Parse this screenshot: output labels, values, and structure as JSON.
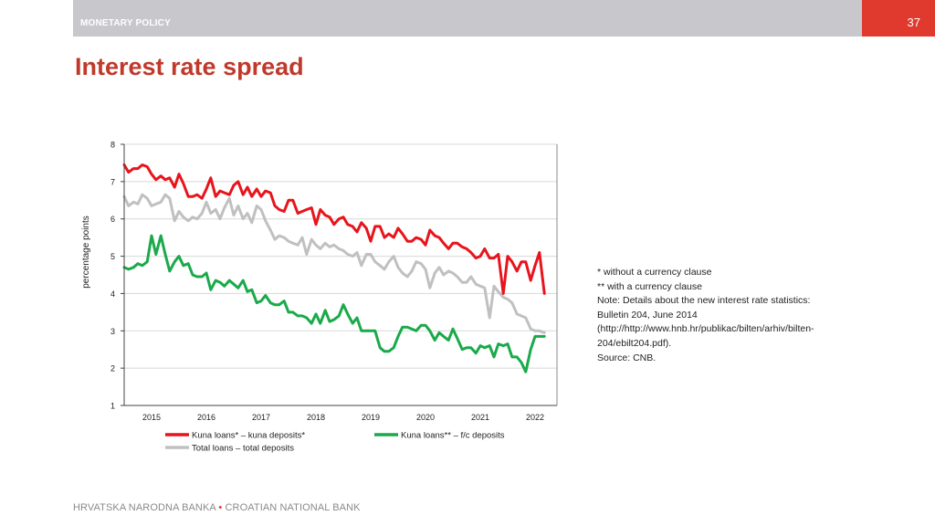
{
  "header": {
    "section_label": "MONETARY POLICY",
    "page_number": "37"
  },
  "slide": {
    "title": "Interest rate spread"
  },
  "notes": [
    "* without a currency clause",
    "** with a currency clause",
    "Note: Details about the new interest rate statistics:",
    "Bulletin 204, June 2014",
    "(http://http://www.hnb.hr/publikac/bilten/arhiv/bilten-",
    "204/ebilt204.pdf).",
    "Source: CNB."
  ],
  "footer": {
    "left": "HRVATSKA NARODNA BANKA",
    "separator": "•",
    "right": "CROATIAN NATIONAL BANK"
  },
  "chart_data": {
    "type": "line",
    "title": "",
    "xlabel": "",
    "ylabel": "percentage points",
    "xlim": [
      2014.5,
      2022.4
    ],
    "ylim": [
      1,
      8
    ],
    "y_ticks": [
      "1",
      "2",
      "3",
      "4",
      "5",
      "6",
      "7",
      "8"
    ],
    "x_ticks": [
      "2015",
      "2016",
      "2017",
      "2018",
      "2019",
      "2020",
      "2021",
      "2022"
    ],
    "grid": "horizontal",
    "legend_position": "bottom",
    "series": [
      {
        "name": "Kuna loans* – kuna deposits*",
        "color": "#e8141c",
        "x": [
          2014.5,
          2014.58,
          2014.67,
          2014.75,
          2014.83,
          2014.92,
          2015.0,
          2015.08,
          2015.17,
          2015.25,
          2015.33,
          2015.42,
          2015.5,
          2015.58,
          2015.67,
          2015.75,
          2015.83,
          2015.92,
          2016.0,
          2016.08,
          2016.17,
          2016.25,
          2016.33,
          2016.42,
          2016.5,
          2016.58,
          2016.67,
          2016.75,
          2016.83,
          2016.92,
          2017.0,
          2017.08,
          2017.17,
          2017.25,
          2017.33,
          2017.42,
          2017.5,
          2017.58,
          2017.67,
          2017.75,
          2017.83,
          2017.92,
          2018.0,
          2018.08,
          2018.17,
          2018.25,
          2018.33,
          2018.42,
          2018.5,
          2018.58,
          2018.67,
          2018.75,
          2018.83,
          2018.92,
          2019.0,
          2019.08,
          2019.17,
          2019.25,
          2019.33,
          2019.42,
          2019.5,
          2019.58,
          2019.67,
          2019.75,
          2019.83,
          2019.92,
          2020.0,
          2020.08,
          2020.17,
          2020.25,
          2020.33,
          2020.42,
          2020.5,
          2020.58,
          2020.67,
          2020.75,
          2020.83,
          2020.92,
          2021.0,
          2021.08,
          2021.17,
          2021.25,
          2021.33,
          2021.42,
          2021.5,
          2021.58,
          2021.67,
          2021.75,
          2021.83,
          2021.92,
          2022.0,
          2022.08,
          2022.17
        ],
        "values": [
          7.45,
          7.25,
          7.35,
          7.35,
          7.45,
          7.4,
          7.2,
          7.05,
          7.15,
          7.05,
          7.1,
          6.85,
          7.2,
          6.95,
          6.6,
          6.6,
          6.65,
          6.55,
          6.8,
          7.1,
          6.6,
          6.75,
          6.7,
          6.65,
          6.9,
          7.0,
          6.65,
          6.85,
          6.6,
          6.8,
          6.6,
          6.75,
          6.7,
          6.35,
          6.25,
          6.2,
          6.5,
          6.5,
          6.15,
          6.2,
          6.25,
          6.3,
          5.85,
          6.25,
          6.1,
          6.05,
          5.85,
          6.0,
          6.05,
          5.85,
          5.8,
          5.65,
          5.9,
          5.75,
          5.4,
          5.8,
          5.8,
          5.5,
          5.6,
          5.5,
          5.75,
          5.6,
          5.4,
          5.4,
          5.5,
          5.45,
          5.3,
          5.7,
          5.55,
          5.5,
          5.35,
          5.2,
          5.35,
          5.35,
          5.25,
          5.2,
          5.1,
          4.95,
          5.0,
          5.2,
          4.95,
          4.95,
          5.05,
          4.0,
          5.0,
          4.85,
          4.6,
          4.85,
          4.85,
          4.35,
          4.75,
          5.1,
          4.0
        ]
      },
      {
        "name": "Kuna loans** – f/c deposits",
        "color": "#1aaa4a",
        "x": [
          2014.5,
          2014.58,
          2014.67,
          2014.75,
          2014.83,
          2014.92,
          2015.0,
          2015.08,
          2015.17,
          2015.25,
          2015.33,
          2015.42,
          2015.5,
          2015.58,
          2015.67,
          2015.75,
          2015.83,
          2015.92,
          2016.0,
          2016.08,
          2016.17,
          2016.25,
          2016.33,
          2016.42,
          2016.5,
          2016.58,
          2016.67,
          2016.75,
          2016.83,
          2016.92,
          2017.0,
          2017.08,
          2017.17,
          2017.25,
          2017.33,
          2017.42,
          2017.5,
          2017.58,
          2017.67,
          2017.75,
          2017.83,
          2017.92,
          2018.0,
          2018.08,
          2018.17,
          2018.25,
          2018.33,
          2018.42,
          2018.5,
          2018.58,
          2018.67,
          2018.75,
          2018.83,
          2018.92,
          2019.0,
          2019.08,
          2019.17,
          2019.25,
          2019.33,
          2019.42,
          2019.5,
          2019.58,
          2019.67,
          2019.75,
          2019.83,
          2019.92,
          2020.0,
          2020.08,
          2020.17,
          2020.25,
          2020.33,
          2020.42,
          2020.5,
          2020.58,
          2020.67,
          2020.75,
          2020.83,
          2020.92,
          2021.0,
          2021.08,
          2021.17,
          2021.25,
          2021.33,
          2021.42,
          2021.5,
          2021.58,
          2021.67,
          2021.75,
          2021.83,
          2021.92,
          2022.0,
          2022.08,
          2022.17
        ],
        "values": [
          4.7,
          4.65,
          4.7,
          4.8,
          4.75,
          4.85,
          5.55,
          5.05,
          5.55,
          5.05,
          4.6,
          4.85,
          5.0,
          4.75,
          4.8,
          4.5,
          4.45,
          4.45,
          4.55,
          4.1,
          4.35,
          4.3,
          4.2,
          4.35,
          4.25,
          4.15,
          4.35,
          4.05,
          4.1,
          3.75,
          3.8,
          3.95,
          3.75,
          3.7,
          3.7,
          3.8,
          3.5,
          3.5,
          3.4,
          3.4,
          3.35,
          3.2,
          3.45,
          3.2,
          3.55,
          3.25,
          3.3,
          3.4,
          3.7,
          3.45,
          3.2,
          3.35,
          3.0,
          3.0,
          3.0,
          3.0,
          2.55,
          2.45,
          2.45,
          2.55,
          2.85,
          3.1,
          3.1,
          3.05,
          3.0,
          3.15,
          3.15,
          3.0,
          2.75,
          2.95,
          2.85,
          2.75,
          3.05,
          2.8,
          2.5,
          2.55,
          2.55,
          2.4,
          2.6,
          2.55,
          2.6,
          2.3,
          2.65,
          2.6,
          2.65,
          2.3,
          2.3,
          2.15,
          1.9,
          2.5,
          2.85,
          2.85,
          2.85
        ]
      },
      {
        "name": "Total loans – total deposits",
        "color": "#c0c0c0",
        "x": [
          2014.5,
          2014.58,
          2014.67,
          2014.75,
          2014.83,
          2014.92,
          2015.0,
          2015.08,
          2015.17,
          2015.25,
          2015.33,
          2015.42,
          2015.5,
          2015.58,
          2015.67,
          2015.75,
          2015.83,
          2015.92,
          2016.0,
          2016.08,
          2016.17,
          2016.25,
          2016.33,
          2016.42,
          2016.5,
          2016.58,
          2016.67,
          2016.75,
          2016.83,
          2016.92,
          2017.0,
          2017.08,
          2017.17,
          2017.25,
          2017.33,
          2017.42,
          2017.5,
          2017.58,
          2017.67,
          2017.75,
          2017.83,
          2017.92,
          2018.0,
          2018.08,
          2018.17,
          2018.25,
          2018.33,
          2018.42,
          2018.5,
          2018.58,
          2018.67,
          2018.75,
          2018.83,
          2018.92,
          2019.0,
          2019.08,
          2019.17,
          2019.25,
          2019.33,
          2019.42,
          2019.5,
          2019.58,
          2019.67,
          2019.75,
          2019.83,
          2019.92,
          2020.0,
          2020.08,
          2020.17,
          2020.25,
          2020.33,
          2020.42,
          2020.5,
          2020.58,
          2020.67,
          2020.75,
          2020.83,
          2020.92,
          2021.0,
          2021.08,
          2021.17,
          2021.25,
          2021.33,
          2021.42,
          2021.5,
          2021.58,
          2021.67,
          2021.75,
          2021.83,
          2021.92,
          2022.0,
          2022.08,
          2022.17
        ],
        "values": [
          6.6,
          6.35,
          6.45,
          6.4,
          6.65,
          6.55,
          6.35,
          6.4,
          6.45,
          6.65,
          6.55,
          5.95,
          6.2,
          6.05,
          5.95,
          6.05,
          6.0,
          6.15,
          6.45,
          6.15,
          6.25,
          6.0,
          6.3,
          6.55,
          6.1,
          6.35,
          6.0,
          6.15,
          5.9,
          6.35,
          6.25,
          5.95,
          5.7,
          5.45,
          5.55,
          5.5,
          5.4,
          5.35,
          5.3,
          5.5,
          5.05,
          5.45,
          5.3,
          5.2,
          5.35,
          5.25,
          5.3,
          5.2,
          5.15,
          5.05,
          5.0,
          5.1,
          4.75,
          5.05,
          5.05,
          4.85,
          4.75,
          4.65,
          4.85,
          5.0,
          4.7,
          4.55,
          4.45,
          4.6,
          4.85,
          4.8,
          4.65,
          4.15,
          4.55,
          4.7,
          4.5,
          4.6,
          4.55,
          4.45,
          4.3,
          4.3,
          4.45,
          4.25,
          4.2,
          4.15,
          3.35,
          4.2,
          4.05,
          3.9,
          3.85,
          3.75,
          3.45,
          3.4,
          3.35,
          3.05,
          3.0,
          3.0,
          2.95
        ]
      }
    ]
  }
}
